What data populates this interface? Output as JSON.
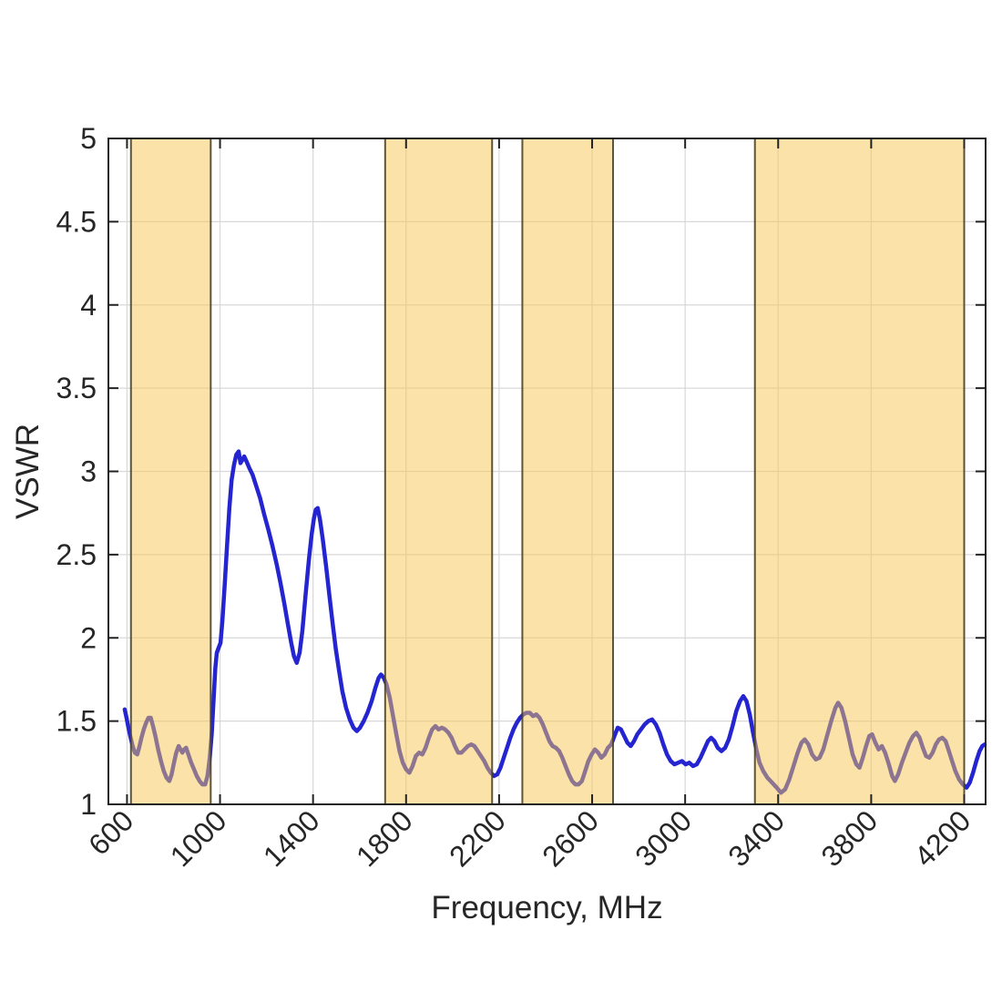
{
  "chart_data": {
    "type": "line",
    "title": "",
    "xlabel": "Frequency, MHz",
    "ylabel": "VSWR",
    "xlim": [
      520,
      4292
    ],
    "ylim": [
      1,
      5
    ],
    "xticks": [
      600,
      1000,
      1400,
      1800,
      2200,
      2600,
      3000,
      3400,
      3800,
      4200
    ],
    "yticks": [
      1,
      1.5,
      2,
      2.5,
      3,
      3.5,
      4,
      4.5,
      5
    ],
    "grid": true,
    "legend_position": "none",
    "x_tick_label_rotation_deg": 45,
    "colors": {
      "background": "#ffffff",
      "frame": "#222222",
      "grid": "#d8d8d8",
      "tick_labels": "#262626",
      "curve": "#2424d0",
      "band_fill": "#f5c552",
      "band_edge": "#4d4426"
    },
    "shaded_bands": {
      "name": "highlighted-frequency-bands",
      "fill": "#f5c552",
      "fill_opacity": 0.5,
      "edge_color": "#4d4426",
      "ranges_mhz": [
        [
          617,
          960
        ],
        [
          1710,
          2170
        ],
        [
          2300,
          2690
        ],
        [
          3300,
          4200
        ]
      ]
    },
    "series": [
      {
        "name": "VSWR",
        "color": "#2424d0",
        "line_width": 4.5,
        "points": [
          [
            590,
            1.57
          ],
          [
            598,
            1.52
          ],
          [
            606,
            1.46
          ],
          [
            614,
            1.41
          ],
          [
            624,
            1.35
          ],
          [
            634,
            1.31
          ],
          [
            644,
            1.3
          ],
          [
            652,
            1.34
          ],
          [
            662,
            1.4
          ],
          [
            672,
            1.45
          ],
          [
            682,
            1.49
          ],
          [
            692,
            1.52
          ],
          [
            702,
            1.52
          ],
          [
            712,
            1.47
          ],
          [
            722,
            1.41
          ],
          [
            734,
            1.33
          ],
          [
            746,
            1.26
          ],
          [
            758,
            1.2
          ],
          [
            770,
            1.16
          ],
          [
            782,
            1.14
          ],
          [
            792,
            1.18
          ],
          [
            802,
            1.25
          ],
          [
            812,
            1.31
          ],
          [
            822,
            1.35
          ],
          [
            830,
            1.33
          ],
          [
            838,
            1.31
          ],
          [
            846,
            1.33
          ],
          [
            854,
            1.34
          ],
          [
            864,
            1.3
          ],
          [
            876,
            1.25
          ],
          [
            888,
            1.21
          ],
          [
            900,
            1.17
          ],
          [
            912,
            1.14
          ],
          [
            924,
            1.12
          ],
          [
            936,
            1.12
          ],
          [
            946,
            1.17
          ],
          [
            956,
            1.28
          ],
          [
            964,
            1.42
          ],
          [
            972,
            1.62
          ],
          [
            980,
            1.82
          ],
          [
            986,
            1.91
          ],
          [
            994,
            1.94
          ],
          [
            1002,
            1.97
          ],
          [
            1010,
            2.1
          ],
          [
            1020,
            2.32
          ],
          [
            1030,
            2.55
          ],
          [
            1040,
            2.78
          ],
          [
            1050,
            2.95
          ],
          [
            1060,
            3.04
          ],
          [
            1070,
            3.1
          ],
          [
            1080,
            3.12
          ],
          [
            1088,
            3.05
          ],
          [
            1096,
            3.07
          ],
          [
            1104,
            3.09
          ],
          [
            1114,
            3.06
          ],
          [
            1126,
            3.02
          ],
          [
            1140,
            2.98
          ],
          [
            1156,
            2.91
          ],
          [
            1172,
            2.84
          ],
          [
            1190,
            2.74
          ],
          [
            1208,
            2.65
          ],
          [
            1226,
            2.55
          ],
          [
            1244,
            2.44
          ],
          [
            1260,
            2.33
          ],
          [
            1276,
            2.21
          ],
          [
            1292,
            2.08
          ],
          [
            1306,
            1.97
          ],
          [
            1318,
            1.89
          ],
          [
            1330,
            1.85
          ],
          [
            1342,
            1.91
          ],
          [
            1354,
            2.04
          ],
          [
            1368,
            2.26
          ],
          [
            1382,
            2.47
          ],
          [
            1394,
            2.62
          ],
          [
            1404,
            2.72
          ],
          [
            1412,
            2.77
          ],
          [
            1420,
            2.78
          ],
          [
            1430,
            2.71
          ],
          [
            1442,
            2.59
          ],
          [
            1456,
            2.43
          ],
          [
            1470,
            2.26
          ],
          [
            1484,
            2.09
          ],
          [
            1498,
            1.93
          ],
          [
            1512,
            1.8
          ],
          [
            1526,
            1.68
          ],
          [
            1542,
            1.58
          ],
          [
            1558,
            1.51
          ],
          [
            1574,
            1.46
          ],
          [
            1588,
            1.44
          ],
          [
            1602,
            1.46
          ],
          [
            1618,
            1.5
          ],
          [
            1634,
            1.55
          ],
          [
            1652,
            1.62
          ],
          [
            1668,
            1.7
          ],
          [
            1682,
            1.76
          ],
          [
            1692,
            1.78
          ],
          [
            1704,
            1.76
          ],
          [
            1716,
            1.72
          ],
          [
            1730,
            1.64
          ],
          [
            1744,
            1.53
          ],
          [
            1758,
            1.42
          ],
          [
            1772,
            1.32
          ],
          [
            1786,
            1.25
          ],
          [
            1800,
            1.21
          ],
          [
            1814,
            1.19
          ],
          [
            1828,
            1.23
          ],
          [
            1842,
            1.29
          ],
          [
            1856,
            1.31
          ],
          [
            1870,
            1.3
          ],
          [
            1884,
            1.34
          ],
          [
            1898,
            1.4
          ],
          [
            1912,
            1.45
          ],
          [
            1926,
            1.47
          ],
          [
            1940,
            1.45
          ],
          [
            1954,
            1.46
          ],
          [
            1968,
            1.45
          ],
          [
            1982,
            1.43
          ],
          [
            1996,
            1.4
          ],
          [
            2010,
            1.35
          ],
          [
            2024,
            1.31
          ],
          [
            2038,
            1.31
          ],
          [
            2052,
            1.33
          ],
          [
            2066,
            1.35
          ],
          [
            2080,
            1.36
          ],
          [
            2094,
            1.35
          ],
          [
            2108,
            1.32
          ],
          [
            2122,
            1.29
          ],
          [
            2136,
            1.26
          ],
          [
            2150,
            1.22
          ],
          [
            2164,
            1.19
          ],
          [
            2178,
            1.17
          ],
          [
            2192,
            1.18
          ],
          [
            2206,
            1.22
          ],
          [
            2220,
            1.28
          ],
          [
            2234,
            1.34
          ],
          [
            2248,
            1.4
          ],
          [
            2262,
            1.45
          ],
          [
            2276,
            1.49
          ],
          [
            2290,
            1.52
          ],
          [
            2304,
            1.54
          ],
          [
            2318,
            1.55
          ],
          [
            2332,
            1.55
          ],
          [
            2346,
            1.53
          ],
          [
            2360,
            1.54
          ],
          [
            2374,
            1.52
          ],
          [
            2388,
            1.48
          ],
          [
            2402,
            1.43
          ],
          [
            2416,
            1.38
          ],
          [
            2430,
            1.35
          ],
          [
            2444,
            1.34
          ],
          [
            2458,
            1.32
          ],
          [
            2472,
            1.28
          ],
          [
            2486,
            1.23
          ],
          [
            2500,
            1.18
          ],
          [
            2514,
            1.14
          ],
          [
            2528,
            1.12
          ],
          [
            2542,
            1.12
          ],
          [
            2556,
            1.14
          ],
          [
            2570,
            1.2
          ],
          [
            2584,
            1.26
          ],
          [
            2598,
            1.3
          ],
          [
            2612,
            1.33
          ],
          [
            2626,
            1.31
          ],
          [
            2640,
            1.28
          ],
          [
            2654,
            1.3
          ],
          [
            2668,
            1.34
          ],
          [
            2682,
            1.36
          ],
          [
            2696,
            1.41
          ],
          [
            2710,
            1.46
          ],
          [
            2724,
            1.45
          ],
          [
            2738,
            1.41
          ],
          [
            2752,
            1.37
          ],
          [
            2766,
            1.35
          ],
          [
            2780,
            1.38
          ],
          [
            2794,
            1.42
          ],
          [
            2810,
            1.45
          ],
          [
            2826,
            1.48
          ],
          [
            2842,
            1.5
          ],
          [
            2858,
            1.51
          ],
          [
            2874,
            1.48
          ],
          [
            2890,
            1.43
          ],
          [
            2906,
            1.36
          ],
          [
            2922,
            1.3
          ],
          [
            2938,
            1.26
          ],
          [
            2954,
            1.24
          ],
          [
            2970,
            1.25
          ],
          [
            2986,
            1.26
          ],
          [
            3002,
            1.24
          ],
          [
            3018,
            1.25
          ],
          [
            3034,
            1.23
          ],
          [
            3050,
            1.24
          ],
          [
            3066,
            1.28
          ],
          [
            3082,
            1.33
          ],
          [
            3098,
            1.38
          ],
          [
            3112,
            1.4
          ],
          [
            3126,
            1.38
          ],
          [
            3140,
            1.34
          ],
          [
            3156,
            1.32
          ],
          [
            3172,
            1.34
          ],
          [
            3188,
            1.39
          ],
          [
            3204,
            1.47
          ],
          [
            3220,
            1.56
          ],
          [
            3236,
            1.62
          ],
          [
            3250,
            1.65
          ],
          [
            3264,
            1.62
          ],
          [
            3278,
            1.54
          ],
          [
            3292,
            1.43
          ],
          [
            3306,
            1.33
          ],
          [
            3320,
            1.25
          ],
          [
            3336,
            1.2
          ],
          [
            3354,
            1.16
          ],
          [
            3374,
            1.13
          ],
          [
            3394,
            1.1
          ],
          [
            3412,
            1.07
          ],
          [
            3430,
            1.09
          ],
          [
            3448,
            1.15
          ],
          [
            3466,
            1.23
          ],
          [
            3484,
            1.31
          ],
          [
            3500,
            1.37
          ],
          [
            3514,
            1.39
          ],
          [
            3530,
            1.36
          ],
          [
            3546,
            1.3
          ],
          [
            3562,
            1.27
          ],
          [
            3578,
            1.28
          ],
          [
            3594,
            1.33
          ],
          [
            3612,
            1.42
          ],
          [
            3630,
            1.51
          ],
          [
            3646,
            1.58
          ],
          [
            3658,
            1.61
          ],
          [
            3672,
            1.58
          ],
          [
            3688,
            1.5
          ],
          [
            3704,
            1.4
          ],
          [
            3720,
            1.3
          ],
          [
            3736,
            1.24
          ],
          [
            3750,
            1.22
          ],
          [
            3764,
            1.28
          ],
          [
            3778,
            1.35
          ],
          [
            3792,
            1.41
          ],
          [
            3804,
            1.42
          ],
          [
            3818,
            1.37
          ],
          [
            3832,
            1.33
          ],
          [
            3846,
            1.35
          ],
          [
            3860,
            1.31
          ],
          [
            3876,
            1.24
          ],
          [
            3890,
            1.17
          ],
          [
            3902,
            1.14
          ],
          [
            3916,
            1.18
          ],
          [
            3932,
            1.25
          ],
          [
            3948,
            1.31
          ],
          [
            3964,
            1.37
          ],
          [
            3980,
            1.41
          ],
          [
            3994,
            1.43
          ],
          [
            4008,
            1.4
          ],
          [
            4022,
            1.34
          ],
          [
            4036,
            1.29
          ],
          [
            4050,
            1.28
          ],
          [
            4064,
            1.31
          ],
          [
            4078,
            1.36
          ],
          [
            4092,
            1.39
          ],
          [
            4106,
            1.4
          ],
          [
            4120,
            1.38
          ],
          [
            4134,
            1.32
          ],
          [
            4148,
            1.26
          ],
          [
            4162,
            1.2
          ],
          [
            4178,
            1.15
          ],
          [
            4194,
            1.12
          ],
          [
            4210,
            1.1
          ],
          [
            4224,
            1.13
          ],
          [
            4238,
            1.19
          ],
          [
            4252,
            1.26
          ],
          [
            4266,
            1.32
          ],
          [
            4278,
            1.35
          ],
          [
            4288,
            1.36
          ]
        ]
      }
    ]
  }
}
